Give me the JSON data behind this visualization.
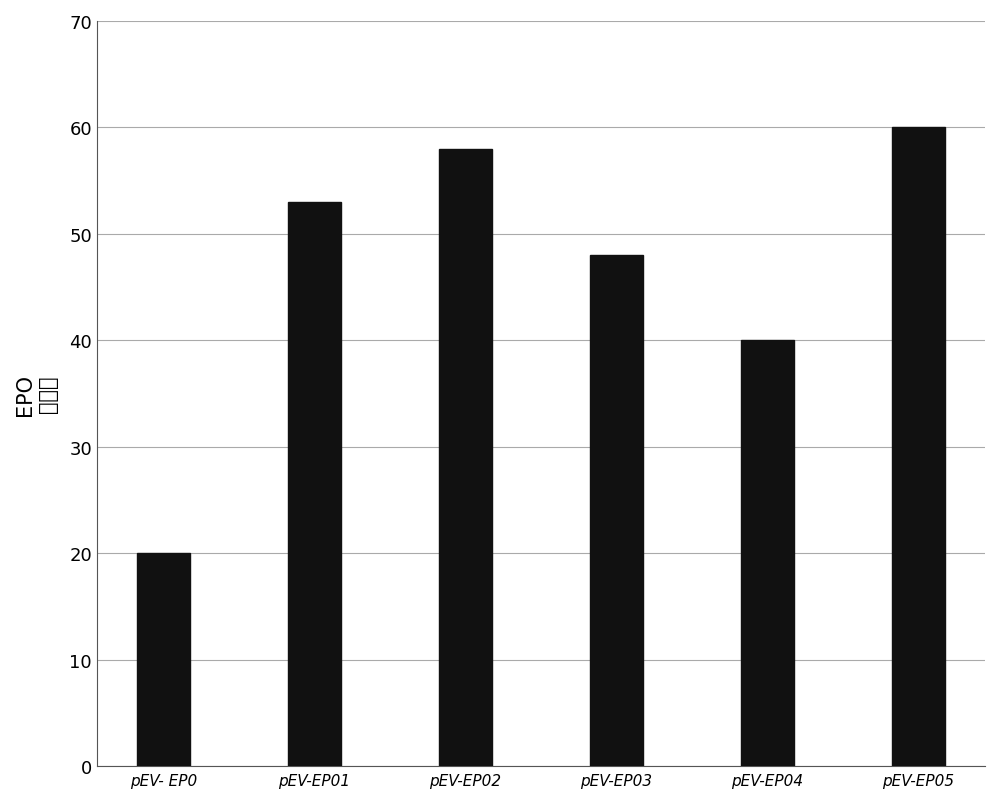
{
  "categories": [
    "pEV- EP0",
    "pEV-EP01",
    "pEV-EP02",
    "pEV-EP03",
    "pEV-EP04",
    "pEV-EP05"
  ],
  "values": [
    20,
    53,
    58,
    48,
    40,
    60
  ],
  "bar_color": "#111111",
  "ylabel_line1": "EPO",
  "ylabel_line2": "表达量",
  "ylim": [
    0,
    70
  ],
  "yticks": [
    0,
    10,
    20,
    30,
    40,
    50,
    60,
    70
  ],
  "background_color": "#ffffff",
  "plot_bg_color": "#ffffff",
  "grid_color": "#aaaaaa",
  "bar_width": 0.35,
  "ylabel_fontsize": 15,
  "tick_fontsize": 13,
  "xlabel_fontsize": 11,
  "spine_color": "#555555",
  "figsize": [
    10.0,
    8.04
  ],
  "dpi": 100
}
